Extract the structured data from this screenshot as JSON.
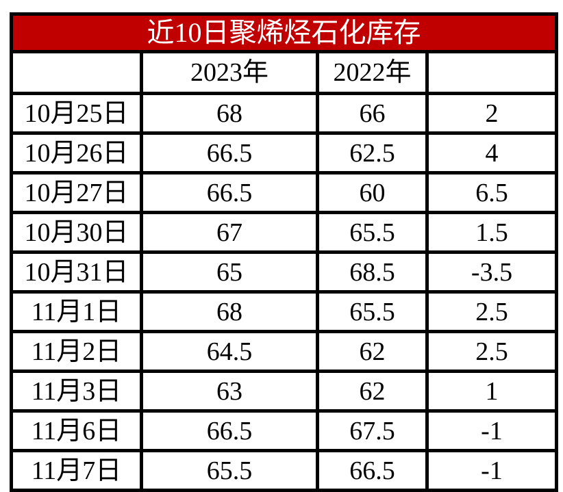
{
  "title": "近10日聚烯烃石化库存",
  "header": {
    "col_date": "",
    "col_2023": "2023年",
    "col_2022": "2022年",
    "col_diff": ""
  },
  "rows": [
    {
      "date": "10月25日",
      "y2023": "68",
      "y2022": "66",
      "diff": "2"
    },
    {
      "date": "10月26日",
      "y2023": "66.5",
      "y2022": "62.5",
      "diff": "4"
    },
    {
      "date": "10月27日",
      "y2023": "66.5",
      "y2022": "60",
      "diff": "6.5"
    },
    {
      "date": "10月30日",
      "y2023": "67",
      "y2022": "65.5",
      "diff": "1.5"
    },
    {
      "date": "10月31日",
      "y2023": "65",
      "y2022": "68.5",
      "diff": "-3.5"
    },
    {
      "date": "11月1日",
      "y2023": "68",
      "y2022": "65.5",
      "diff": "2.5"
    },
    {
      "date": "11月2日",
      "y2023": "64.5",
      "y2022": "62",
      "diff": "2.5"
    },
    {
      "date": "11月3日",
      "y2023": "63",
      "y2022": "62",
      "diff": "1"
    },
    {
      "date": "11月6日",
      "y2023": "66.5",
      "y2022": "67.5",
      "diff": "-1"
    },
    {
      "date": "11月7日",
      "y2023": "65.5",
      "y2022": "66.5",
      "diff": "-1"
    }
  ],
  "colors": {
    "title_bg": "#C00000",
    "title_text": "#FFFFFF",
    "border": "#000000",
    "cell_bg": "#FFFFFF",
    "cell_text": "#000000"
  },
  "chart_data": {
    "type": "table",
    "title": "近10日聚烯烃石化库存",
    "categories": [
      "10月25日",
      "10月26日",
      "10月27日",
      "10月30日",
      "10月31日",
      "11月1日",
      "11月2日",
      "11月3日",
      "11月6日",
      "11月7日"
    ],
    "series": [
      {
        "name": "2023年",
        "values": [
          68,
          66.5,
          66.5,
          67,
          65,
          68,
          64.5,
          63,
          66.5,
          65.5
        ]
      },
      {
        "name": "2022年",
        "values": [
          66,
          62.5,
          60,
          65.5,
          68.5,
          65.5,
          62,
          62,
          67.5,
          66.5
        ]
      },
      {
        "name": "",
        "values": [
          2,
          4,
          6.5,
          1.5,
          -3.5,
          2.5,
          2.5,
          1,
          -1,
          -1
        ]
      }
    ]
  }
}
